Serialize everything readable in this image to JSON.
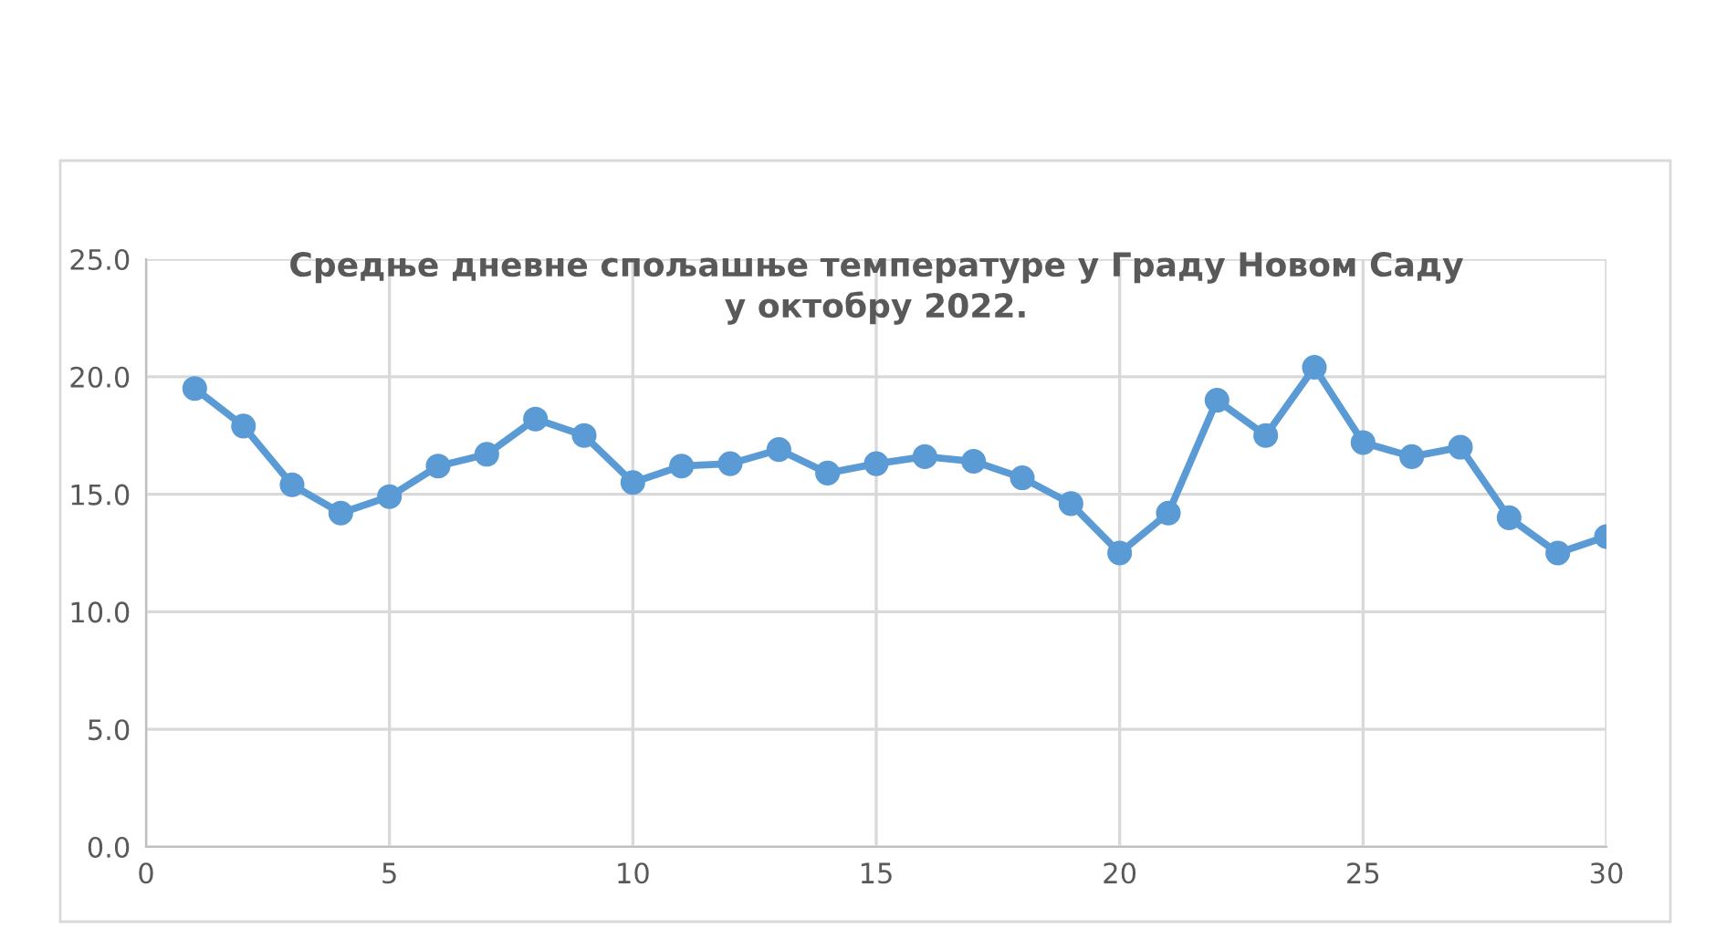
{
  "chart_data": {
    "type": "line",
    "title": "Средње дневне спољашње температуре у Граду Новом Саду\nу октобру 2022.",
    "x": [
      1,
      2,
      3,
      4,
      5,
      6,
      7,
      8,
      9,
      10,
      11,
      12,
      13,
      14,
      15,
      16,
      17,
      18,
      19,
      20,
      21,
      22,
      23,
      24,
      25,
      26,
      27,
      28,
      29,
      30
    ],
    "series": [
      {
        "color": "#5b9bd5",
        "values": [
          19.5,
          17.9,
          15.4,
          14.2,
          14.9,
          16.2,
          16.7,
          18.2,
          17.5,
          15.5,
          16.2,
          16.3,
          16.9,
          15.9,
          16.3,
          16.6,
          16.4,
          15.7,
          14.6,
          12.5,
          14.2,
          19.0,
          17.5,
          20.4,
          17.2,
          16.6,
          17.0,
          14.0,
          12.5,
          13.2
        ]
      }
    ],
    "xlim": [
      0,
      30
    ],
    "xticks": [
      0,
      5,
      10,
      15,
      20,
      25,
      30
    ],
    "ylim": [
      0,
      25
    ],
    "yticks": [
      {
        "value": 0,
        "label": "0.0"
      },
      {
        "value": 5,
        "label": "5.0"
      },
      {
        "value": 10,
        "label": "10.0"
      },
      {
        "value": 15,
        "label": "15.0"
      },
      {
        "value": 20,
        "label": "20.0"
      },
      {
        "value": 25,
        "label": "25.0"
      }
    ],
    "grid": true,
    "marker": "circle",
    "line_style": "solid"
  }
}
